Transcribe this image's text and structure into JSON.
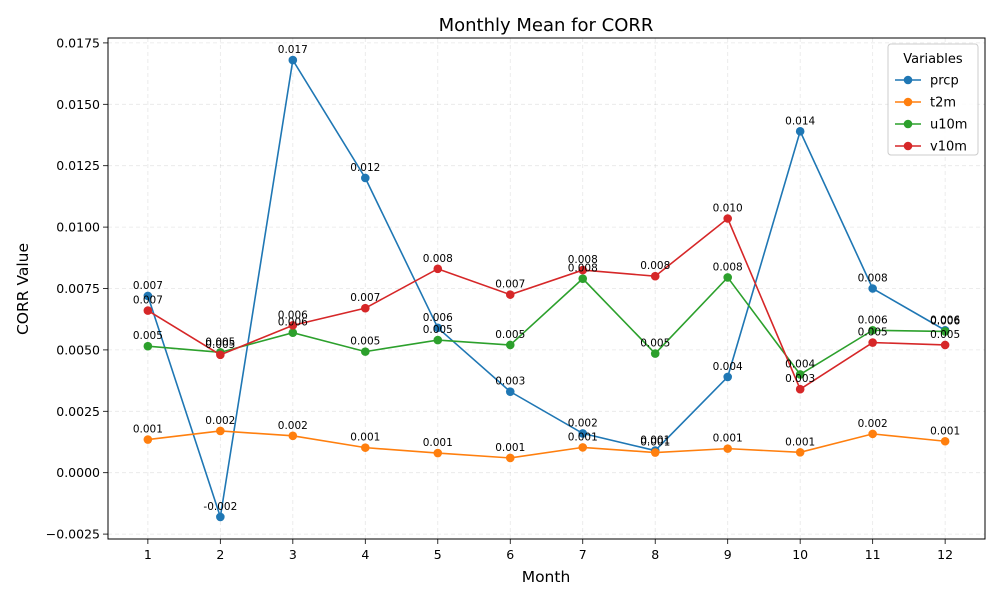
{
  "chart_data": {
    "type": "line",
    "title": "Monthly Mean for CORR",
    "xlabel": "Month",
    "ylabel": "CORR Value",
    "categories": [
      1,
      2,
      3,
      4,
      5,
      6,
      7,
      8,
      9,
      10,
      11,
      12
    ],
    "xlim": [
      0.45,
      12.55
    ],
    "ylim": [
      -0.0027,
      0.0177
    ],
    "yticks": [
      -0.0025,
      0.0,
      0.0025,
      0.005,
      0.0075,
      0.01,
      0.0125,
      0.015,
      0.0175
    ],
    "ytick_labels": [
      "−0.0025",
      "0.0000",
      "0.0025",
      "0.0050",
      "0.0075",
      "0.0100",
      "0.0125",
      "0.0150",
      "0.0175"
    ],
    "grid": true,
    "legend": {
      "title": "Variables",
      "placement": "top-right"
    },
    "series": [
      {
        "name": "prcp",
        "color": "#1f77b4",
        "values": [
          0.0072,
          -0.0018,
          0.0168,
          0.012,
          0.0059,
          0.0033,
          0.0016,
          0.0009,
          0.0039,
          0.0139,
          0.0075,
          0.0058
        ],
        "labels": [
          "0.007",
          "-0.002",
          "0.017",
          "0.012",
          "0.006",
          "0.003",
          "0.002",
          "0.001",
          "0.004",
          "0.014",
          "0.008",
          "0.006"
        ]
      },
      {
        "name": "t2m",
        "color": "#ff7f0e",
        "values": [
          0.00135,
          0.0017,
          0.0015,
          0.00102,
          0.0008,
          0.0006,
          0.00103,
          0.00082,
          0.00098,
          0.00083,
          0.00158,
          0.00128
        ],
        "labels": [
          "0.001",
          "0.002",
          "0.002",
          "0.001",
          "0.001",
          "0.001",
          "0.001",
          "0.001",
          "0.001",
          "0.001",
          "0.002",
          "0.001"
        ]
      },
      {
        "name": "u10m",
        "color": "#2ca02c",
        "values": [
          0.00515,
          0.0049,
          0.0057,
          0.00493,
          0.0054,
          0.0052,
          0.0079,
          0.00485,
          0.00795,
          0.004,
          0.0058,
          0.00575
        ],
        "labels": [
          "0.005",
          "0.005",
          "0.006",
          "0.005",
          "0.005",
          "0.005",
          "0.008",
          "0.005",
          "0.008",
          "0.004",
          "0.006",
          "0.006"
        ]
      },
      {
        "name": "v10m",
        "color": "#d62728",
        "values": [
          0.0066,
          0.0048,
          0.006,
          0.0067,
          0.0083,
          0.00725,
          0.00825,
          0.008,
          0.01035,
          0.0034,
          0.0053,
          0.0052
        ],
        "labels": [
          "0.007",
          "0.005",
          "0.006",
          "0.007",
          "0.008",
          "0.007",
          "0.008",
          "0.008",
          "0.010",
          "0.003",
          "0.005",
          "0.005"
        ]
      }
    ]
  }
}
